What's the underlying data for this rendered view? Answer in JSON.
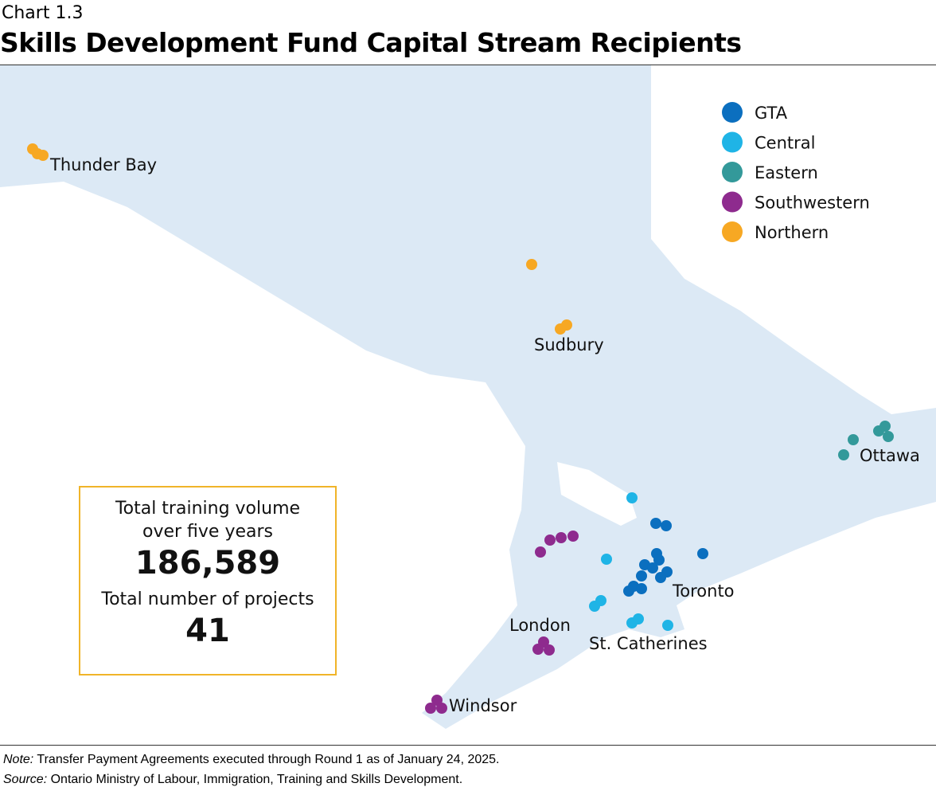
{
  "header": {
    "label": "Chart 1.3",
    "title": "Skills Development Fund Capital Stream Recipients"
  },
  "legend": [
    {
      "name": "GTA",
      "color": "#0b6fbf"
    },
    {
      "name": "Central",
      "color": "#1fb4e6"
    },
    {
      "name": "Eastern",
      "color": "#33999a"
    },
    {
      "name": "Southwestern",
      "color": "#8e2b8e"
    },
    {
      "name": "Northern",
      "color": "#f7a823"
    }
  ],
  "city_labels": [
    "Thunder Bay",
    "Sudbury",
    "Ottawa",
    "Toronto",
    "London",
    "St. Catherines",
    "Windsor"
  ],
  "summary": {
    "volume_label": "Total training volume over five years",
    "volume": "186,589",
    "projects_label": "Total number of projects",
    "projects": "41"
  },
  "footer": {
    "note_label": "Note:",
    "note": "Transfer Payment Agreements executed through Round 1 as of January 24, 2025.",
    "source_label": "Source:",
    "source": "Ontario Ministry of Labour, Immigration, Training and Skills Development."
  }
}
